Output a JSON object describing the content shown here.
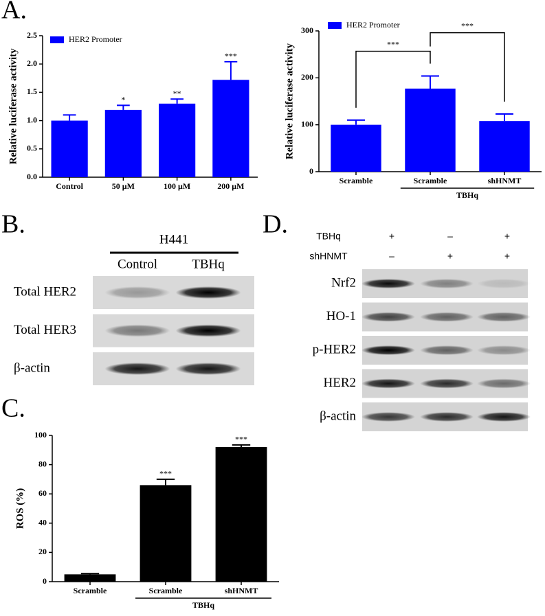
{
  "panel_labels": [
    "A.",
    "B.",
    "C.",
    "D."
  ],
  "chart_data": [
    {
      "type": "bar",
      "y_label": "Relative luciferase activity",
      "categories": [
        "Control",
        "50 μM",
        "100 μM",
        "200 μM"
      ],
      "series": [
        {
          "name": "HER2 Promoter",
          "color": "#0000ff",
          "values": [
            1.0,
            1.19,
            1.3,
            1.72
          ],
          "errors": [
            0.1,
            0.08,
            0.08,
            0.32
          ]
        }
      ],
      "significance": [
        null,
        "*",
        "**",
        "***"
      ],
      "ylim": [
        0,
        2.5
      ],
      "yticks": [
        {
          "value": 0,
          "label": "0.0"
        },
        {
          "value": 0.5,
          "label": "0.5"
        },
        {
          "value": 1,
          "label": "1.0"
        },
        1.5,
        {
          "value": 2,
          "label": "2.0"
        },
        2.5
      ]
    },
    {
      "type": "bar",
      "y_label": "Relative luciferase activity",
      "categories": [
        "Scramble",
        "Scramble",
        "shHNMT"
      ],
      "group": {
        "label": "TBHq",
        "from": 1,
        "to": 2
      },
      "series": [
        {
          "name": "HER2 Promoter",
          "color": "#0000ff",
          "values": [
            100,
            177,
            108
          ],
          "errors": [
            10,
            27,
            15
          ]
        }
      ],
      "comparisons": [
        {
          "from": 0,
          "to": 1,
          "label": "***"
        },
        {
          "from": 1,
          "to": 2,
          "label": "***"
        }
      ],
      "ylim": [
        0,
        300
      ],
      "yticks": [
        0,
        100,
        200,
        300
      ]
    },
    {
      "type": "bar",
      "y_label": "ROS (%)",
      "categories": [
        "Scramble",
        "Scramble",
        "shHNMT"
      ],
      "group": {
        "label": "TBHq",
        "from": 1,
        "to": 2
      },
      "values": [
        5,
        66,
        92
      ],
      "errors": [
        0.5,
        4,
        1.5
      ],
      "color": "#000000",
      "significance": [
        null,
        "***",
        "***"
      ],
      "ylim": [
        0,
        100
      ],
      "yticks": [
        0,
        20,
        40,
        60,
        80,
        100
      ]
    }
  ],
  "blot_b": {
    "cell_line": "H441",
    "columns": [
      "Control",
      "TBHq"
    ],
    "rows": [
      "Total HER2",
      "Total HER3",
      "β-actin"
    ]
  },
  "blot_d": {
    "conditions": [
      {
        "label": "TBHq",
        "marks": [
          "+",
          "–",
          "+"
        ]
      },
      {
        "label": "shHNMT",
        "marks": [
          "–",
          "+",
          "+"
        ]
      }
    ],
    "rows": [
      "Nrf2",
      "HO-1",
      "p-HER2",
      "HER2",
      "β-actin"
    ]
  }
}
